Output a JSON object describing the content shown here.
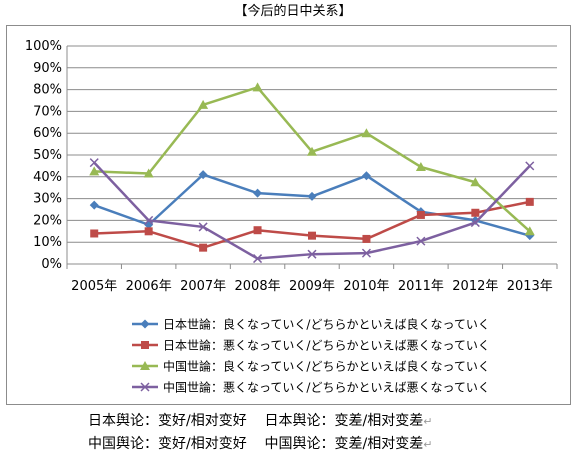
{
  "title": "【今后的日中关系】",
  "captions": {
    "line1": "日本舆论：变好/相对变好    日本舆论：变差/相对变差",
    "line2": "中国舆论：变好/相对变好    中国舆论：变差/相对变差",
    "return_mark": "↵"
  },
  "chart_data": {
    "type": "line",
    "categories": [
      "2005年",
      "2006年",
      "2007年",
      "2008年",
      "2009年",
      "2010年",
      "2011年",
      "2012年",
      "2013年"
    ],
    "ylim": [
      0,
      100
    ],
    "yticks": [
      "0%",
      "10%",
      "20%",
      "30%",
      "40%",
      "50%",
      "60%",
      "70%",
      "80%",
      "90%",
      "100%"
    ],
    "grid": true,
    "legend_position": "bottom",
    "series": [
      {
        "name": "日本世論：良くなっていく/どちらかといえば良くなっていく",
        "values": [
          27,
          18,
          41,
          32.5,
          31,
          40.5,
          24,
          20,
          13
        ],
        "color": "#4a7ebb",
        "marker": "diamond"
      },
      {
        "name": "日本世論：悪くなっていく/どちらかといえば悪くなっていく",
        "values": [
          14,
          15,
          7.5,
          15.5,
          13,
          11.5,
          22.5,
          23.5,
          28.5
        ],
        "color": "#be4b48",
        "marker": "square"
      },
      {
        "name": "中国世論：良くなっていく/どちらかといえば良くなっていく",
        "values": [
          42.5,
          41.5,
          73,
          81,
          51.5,
          60,
          44.5,
          37.5,
          15
        ],
        "color": "#98b954",
        "marker": "triangle"
      },
      {
        "name": "中国世論：悪くなっていく/どちらかといえば悪くなっていく",
        "values": [
          46.5,
          20,
          17,
          2.5,
          4.5,
          5,
          10.5,
          19,
          45
        ],
        "color": "#7d60a0",
        "marker": "x"
      }
    ]
  }
}
